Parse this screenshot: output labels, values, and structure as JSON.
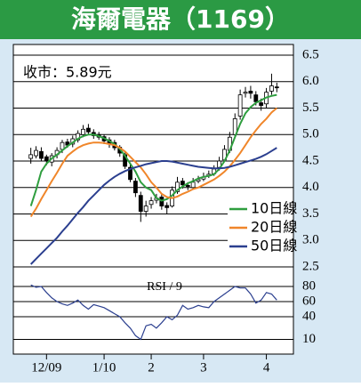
{
  "chart_data": [
    {
      "type": "candlestick",
      "title": "海爾電器（1169）",
      "annotation": "收市：5.89元",
      "categories": [
        null,
        null,
        null,
        "12/09",
        null,
        null,
        null,
        null,
        null,
        null,
        null,
        null,
        null,
        null,
        "1/10",
        null,
        null,
        null,
        null,
        null,
        null,
        null,
        null,
        "2",
        null,
        null,
        null,
        null,
        null,
        null,
        null,
        null,
        null,
        "3",
        null,
        null,
        null,
        null,
        null,
        null,
        null,
        null,
        null,
        null,
        null,
        "4",
        null,
        null
      ],
      "open": [
        4.55,
        4.6,
        4.68,
        4.58,
        4.48,
        4.62,
        4.72,
        4.86,
        4.82,
        4.9,
        5.0,
        5.12,
        5.04,
        5.0,
        4.96,
        4.9,
        4.85,
        4.76,
        4.62,
        4.38,
        4.12,
        3.85,
        3.55,
        3.68,
        3.76,
        3.82,
        3.66,
        3.65,
        3.92,
        4.12,
        4.04,
        4.0,
        4.12,
        4.16,
        4.22,
        4.26,
        4.38,
        4.52,
        4.7,
        5.0,
        5.35,
        5.78,
        5.82,
        5.75,
        5.6,
        5.58,
        5.82,
        5.9
      ],
      "high": [
        4.75,
        4.78,
        4.76,
        4.62,
        4.65,
        4.76,
        4.9,
        4.92,
        4.98,
        5.08,
        5.18,
        5.2,
        5.1,
        5.05,
        5.0,
        4.95,
        4.9,
        4.8,
        4.68,
        4.45,
        4.18,
        3.92,
        3.75,
        3.82,
        3.88,
        3.88,
        3.72,
        4.02,
        4.2,
        4.18,
        4.1,
        4.18,
        4.22,
        4.28,
        4.32,
        4.42,
        4.58,
        4.8,
        5.05,
        5.4,
        5.85,
        5.9,
        5.92,
        5.82,
        5.68,
        5.88,
        6.15,
        5.98
      ],
      "low": [
        4.45,
        4.55,
        4.5,
        4.42,
        4.4,
        4.55,
        4.65,
        4.75,
        4.76,
        4.85,
        4.95,
        5.0,
        4.92,
        4.9,
        4.82,
        4.75,
        4.7,
        4.58,
        4.35,
        4.1,
        3.82,
        3.35,
        3.45,
        3.6,
        3.7,
        3.58,
        3.5,
        3.62,
        3.88,
        3.98,
        3.95,
        3.96,
        4.08,
        4.12,
        4.18,
        4.22,
        4.32,
        4.48,
        4.65,
        4.95,
        5.28,
        5.7,
        5.68,
        5.55,
        5.45,
        5.5,
        5.75,
        5.8
      ],
      "close": [
        4.62,
        4.7,
        4.55,
        4.5,
        4.6,
        4.7,
        4.85,
        4.8,
        4.92,
        5.02,
        5.1,
        5.05,
        4.98,
        4.95,
        4.88,
        4.82,
        4.75,
        4.65,
        4.4,
        4.15,
        3.9,
        3.55,
        3.65,
        3.75,
        3.8,
        3.65,
        3.62,
        3.95,
        4.1,
        4.05,
        4.02,
        4.1,
        4.15,
        4.2,
        4.25,
        4.35,
        4.5,
        4.72,
        4.95,
        5.3,
        5.75,
        5.8,
        5.78,
        5.62,
        5.55,
        5.8,
        5.92,
        5.89
      ],
      "up_color": "#ffffff",
      "down_color": "#000000",
      "series": [
        {
          "name": "10日線",
          "color": "#2f9e3f",
          "values": [
            3.65,
            3.95,
            4.3,
            4.45,
            4.55,
            4.62,
            4.7,
            4.78,
            4.85,
            4.92,
            4.97,
            5.0,
            5.0,
            4.97,
            4.93,
            4.88,
            4.82,
            4.73,
            4.6,
            4.45,
            4.3,
            4.1,
            4.0,
            3.95,
            3.8,
            3.75,
            3.78,
            3.85,
            3.95,
            4.02,
            4.08,
            4.12,
            4.17,
            4.2,
            4.22,
            4.25,
            4.35,
            4.5,
            4.7,
            4.95,
            5.2,
            5.4,
            5.52,
            5.6,
            5.65,
            5.7,
            5.73,
            5.75
          ]
        },
        {
          "name": "20日線",
          "color": "#f0862a",
          "values": [
            3.45,
            3.6,
            3.78,
            3.95,
            4.12,
            4.28,
            4.45,
            4.6,
            4.68,
            4.75,
            4.8,
            4.83,
            4.85,
            4.85,
            4.84,
            4.82,
            4.8,
            4.75,
            4.68,
            4.58,
            4.48,
            4.38,
            4.25,
            4.1,
            4.0,
            3.88,
            3.82,
            3.8,
            3.83,
            3.88,
            3.92,
            3.97,
            4.0,
            4.05,
            4.1,
            4.15,
            4.22,
            4.3,
            4.4,
            4.52,
            4.65,
            4.8,
            4.95,
            5.08,
            5.2,
            5.3,
            5.42,
            5.5
          ]
        },
        {
          "name": "50日線",
          "color": "#2b3f8f",
          "values": [
            2.55,
            2.65,
            2.75,
            2.85,
            2.95,
            3.05,
            3.17,
            3.28,
            3.4,
            3.52,
            3.63,
            3.75,
            3.85,
            3.95,
            4.05,
            4.13,
            4.2,
            4.26,
            4.31,
            4.35,
            4.38,
            4.41,
            4.44,
            4.46,
            4.48,
            4.5,
            4.5,
            4.49,
            4.47,
            4.45,
            4.43,
            4.41,
            4.39,
            4.38,
            4.37,
            4.36,
            4.36,
            4.37,
            4.39,
            4.42,
            4.45,
            4.48,
            4.51,
            4.54,
            4.58,
            4.63,
            4.69,
            4.75
          ]
        }
      ],
      "ylim": [
        2.5,
        6.5
      ],
      "yticks": [
        2.5,
        {
          "value": 3,
          "label": "3.0"
        },
        3.5,
        {
          "value": 4,
          "label": "4.0"
        },
        4.5,
        {
          "value": 5,
          "label": "5.0"
        },
        5.5,
        {
          "value": 6,
          "label": "6.0"
        },
        6.5
      ],
      "grid": true,
      "legend": "right"
    },
    {
      "type": "line",
      "title": "RSI / 9",
      "series": [
        {
          "color": "#2b3f8f",
          "values": [
            82,
            79,
            80,
            72,
            65,
            60,
            57,
            55,
            58,
            62,
            55,
            50,
            56,
            54,
            52,
            48,
            44,
            40,
            32,
            25,
            15,
            10,
            28,
            30,
            25,
            32,
            40,
            36,
            42,
            55,
            50,
            52,
            55,
            53,
            52,
            60,
            65,
            70,
            75,
            80,
            78,
            78,
            70,
            58,
            62,
            72,
            70,
            62
          ]
        }
      ],
      "ylim": [
        0,
        100
      ],
      "yticks": [
        10,
        40,
        60,
        80
      ],
      "grid": true
    }
  ]
}
